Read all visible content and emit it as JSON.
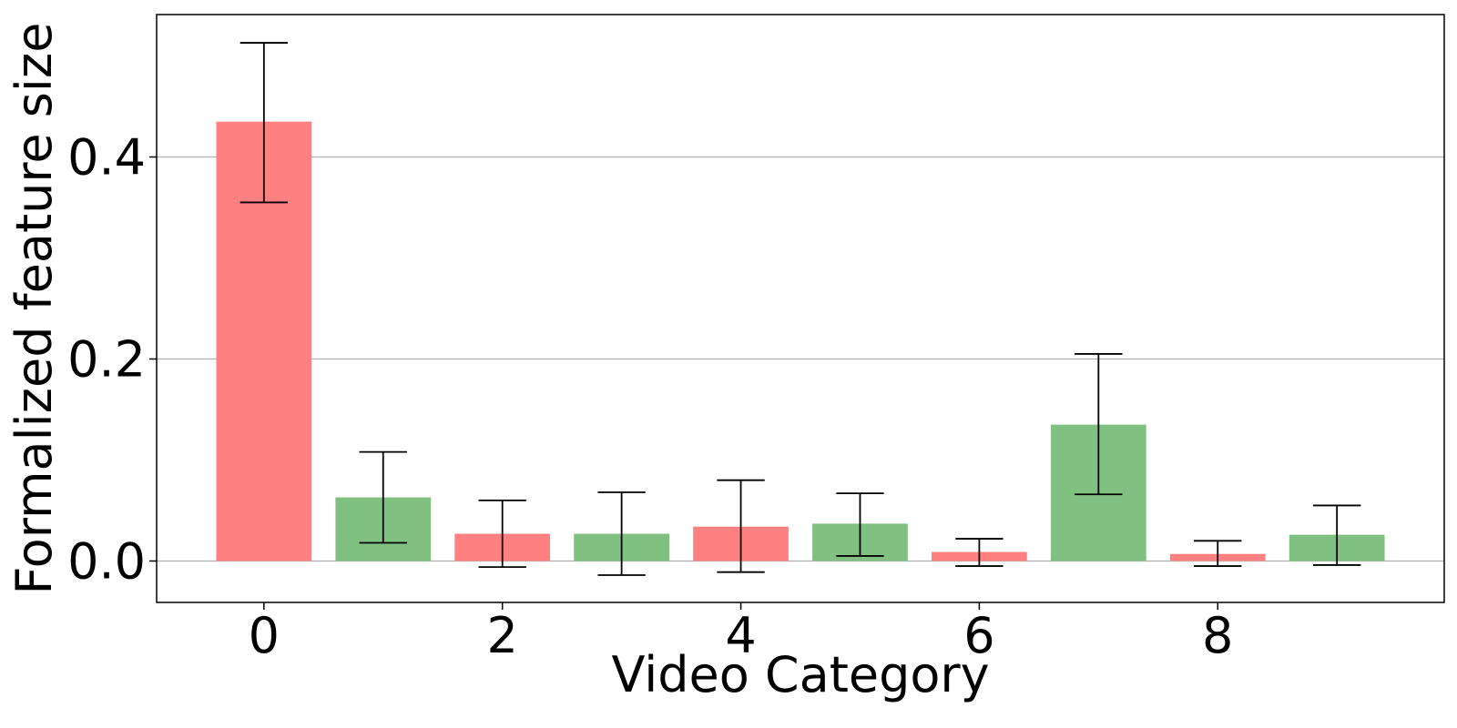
{
  "chart_data": {
    "type": "bar",
    "x": [
      0,
      1,
      2,
      3,
      4,
      5,
      6,
      7,
      8,
      9
    ],
    "values": [
      0.435,
      0.063,
      0.027,
      0.027,
      0.034,
      0.037,
      0.009,
      0.135,
      0.007,
      0.026
    ],
    "error_low": [
      0.355,
      0.018,
      -0.006,
      -0.014,
      -0.011,
      0.005,
      -0.005,
      0.066,
      -0.005,
      -0.004
    ],
    "error_high": [
      0.513,
      0.108,
      0.06,
      0.068,
      0.08,
      0.067,
      0.022,
      0.205,
      0.02,
      0.055
    ],
    "bar_colors": [
      "#ff8080",
      "#80c080",
      "#ff8080",
      "#80c080",
      "#ff8080",
      "#80c080",
      "#ff8080",
      "#80c080",
      "#ff8080",
      "#80c080"
    ],
    "xlabel": "Video Category",
    "ylabel": "Formalized feature size",
    "xlim": [
      -0.9,
      9.9
    ],
    "ylim": [
      -0.041,
      0.541
    ],
    "xticks": [
      0,
      2,
      4,
      6,
      8
    ],
    "xtick_labels": [
      "0",
      "2",
      "4",
      "6",
      "8"
    ],
    "yticks": [
      0.0,
      0.2,
      0.4
    ],
    "ytick_labels": [
      "0.0",
      "0.2",
      "0.4"
    ],
    "grid": "horizontal",
    "legend": "none"
  }
}
